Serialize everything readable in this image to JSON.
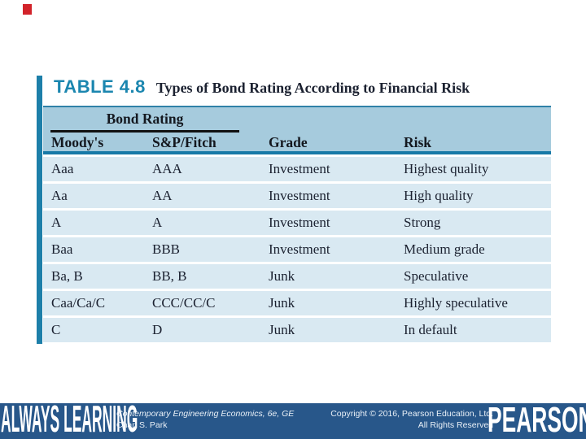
{
  "slide": {
    "marker_color": "#d2232a",
    "title": {
      "label": "TABLE 4.8",
      "text": "Types of Bond Rating According to Financial Risk"
    },
    "table": {
      "group_header": "Bond Rating",
      "columns": [
        "Moody's",
        "S&P/Fitch",
        "Grade",
        "Risk"
      ],
      "rows": [
        [
          "Aaa",
          "AAA",
          "Investment",
          "Highest quality"
        ],
        [
          "Aa",
          "AA",
          "Investment",
          "High quality"
        ],
        [
          "A",
          "A",
          "Investment",
          "Strong"
        ],
        [
          "Baa",
          "BBB",
          "Investment",
          "Medium grade"
        ],
        [
          "Ba, B",
          "BB, B",
          "Junk",
          "Speculative"
        ],
        [
          "Caa/Ca/C",
          "CCC/CC/C",
          "Junk",
          "Highly speculative"
        ],
        [
          "C",
          "D",
          "Junk",
          "In default"
        ]
      ]
    },
    "footer": {
      "brand_left": "ALWAYS LEARNING",
      "book_title": "Contemporary Engineering Economics, 6e, GE",
      "book_author": "Chan S. Park",
      "copyright_line1": "Copyright © 2016, Pearson Education, Ltd.",
      "copyright_line2": "All Rights Reserved",
      "brand_right": "PEARSON"
    },
    "colors": {
      "accent_teal": "#1d7fa9",
      "header_band": "#a6cbdd",
      "row_fill": "#d9e9f2",
      "footer_navy": "#28578a",
      "marker_red": "#d2232a"
    }
  }
}
